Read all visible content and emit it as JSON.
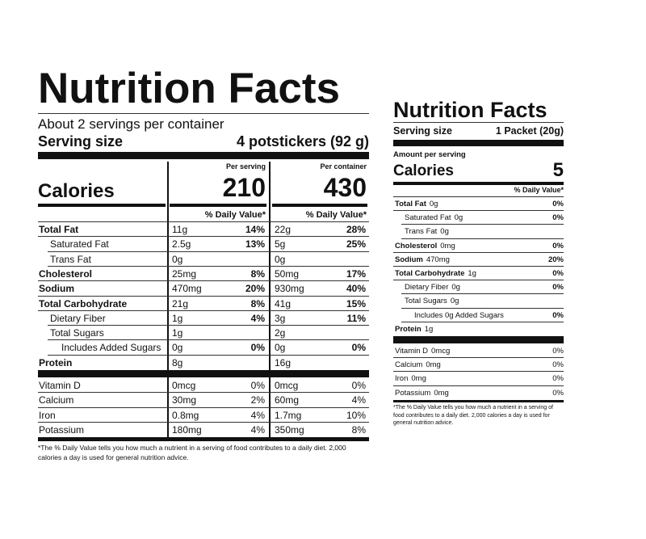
{
  "labels": [
    {
      "title": "Nutrition Facts",
      "servings": "About 2 servings per container",
      "serving_size_label": "Serving size",
      "serving_size": "4 potstickers (92 g)",
      "calories_label": "Calories",
      "columns": [
        {
          "header": "Per serving",
          "calories": "210",
          "dv_header": "% Daily Value*"
        },
        {
          "header": "Per container",
          "calories": "430",
          "dv_header": "% Daily Value*"
        }
      ],
      "rows": [
        {
          "name": "Total Fat",
          "values": [
            [
              "11g",
              "14%"
            ],
            [
              "22g",
              "28%"
            ]
          ]
        },
        {
          "name": "Saturated Fat",
          "values": [
            [
              "2.5g",
              "13%"
            ],
            [
              "5g",
              "25%"
            ]
          ]
        },
        {
          "name": "Trans Fat",
          "values": [
            [
              "0g"
            ],
            [
              "0g"
            ]
          ]
        },
        {
          "name": "Cholesterol",
          "values": [
            [
              "25mg",
              "8%"
            ],
            [
              "50mg",
              "17%"
            ]
          ]
        },
        {
          "name": "Sodium",
          "values": [
            [
              "470mg",
              "20%"
            ],
            [
              "930mg",
              "40%"
            ]
          ]
        },
        {
          "name": "Total Carbohydrate",
          "values": [
            [
              "21g",
              "8%"
            ],
            [
              "41g",
              "15%"
            ]
          ]
        },
        {
          "name": "Dietary Fiber",
          "values": [
            [
              "1g",
              "4%"
            ],
            [
              "3g",
              "11%"
            ]
          ]
        },
        {
          "name": "Total Sugars",
          "values": [
            [
              "1g"
            ],
            [
              "2g"
            ]
          ]
        },
        {
          "name": "Includes Added Sugars",
          "values": [
            [
              "0g",
              "0%"
            ],
            [
              "0g",
              "0%"
            ]
          ]
        },
        {
          "name": "Protein",
          "values": [
            [
              "8g"
            ],
            [
              "16g"
            ]
          ]
        },
        {
          "name": "Vitamin D",
          "values": [
            [
              "0mcg",
              "0%"
            ],
            [
              "0mcg",
              "0%"
            ]
          ]
        },
        {
          "name": "Calcium",
          "values": [
            [
              "30mg",
              "2%"
            ],
            [
              "60mg",
              "4%"
            ]
          ]
        },
        {
          "name": "Iron",
          "values": [
            [
              "0.8mg",
              "4%"
            ],
            [
              "1.7mg",
              "10%"
            ]
          ]
        },
        {
          "name": "Potassium",
          "values": [
            [
              "180mg",
              "4%"
            ],
            [
              "350mg",
              "8%"
            ]
          ]
        }
      ],
      "footnote": "*The % Daily Value tells you how much a nutrient in a serving of food contributes to a daily diet. 2,000 calories a day is used for general nutrition advice."
    },
    {
      "title": "Nutrition Facts",
      "serving_size_label": "Serving size",
      "serving_size": "1 Packet (20g)",
      "amount_per_serving": "Amount per serving",
      "calories_label": "Calories",
      "calories": "5",
      "dv_header": "% Daily Value*",
      "rows": [
        {
          "name": "Total Fat",
          "amount": "0g",
          "dv": "0%"
        },
        {
          "name": "Saturated Fat",
          "amount": "0g",
          "dv": "0%"
        },
        {
          "name": "Trans Fat",
          "amount": "0g"
        },
        {
          "name": "Cholesterol",
          "amount": "0mg",
          "dv": "0%"
        },
        {
          "name": "Sodium",
          "amount": "470mg",
          "dv": "20%"
        },
        {
          "name": "Total Carbohydrate",
          "amount": "1g",
          "dv": "0%"
        },
        {
          "name": "Dietary Fiber",
          "amount": "0g",
          "dv": "0%"
        },
        {
          "name": "Total Sugars",
          "amount": "0g"
        },
        {
          "name": "Includes 0g Added Sugars",
          "dv": "0%"
        },
        {
          "name": "Protein",
          "amount": "1g"
        },
        {
          "name": "Vitamin D",
          "amount": "0mcg",
          "dv": "0%"
        },
        {
          "name": "Calcium",
          "amount": "0mg",
          "dv": "0%"
        },
        {
          "name": "Iron",
          "amount": "0mg",
          "dv": "0%"
        },
        {
          "name": "Potassium",
          "amount": "0mg",
          "dv": "0%"
        }
      ],
      "footnote": "*The % Daily Value tells you how much a nutrient in a serving of food contributes to a daily diet. 2,000 calories a day is used for general nutrition advice."
    }
  ]
}
